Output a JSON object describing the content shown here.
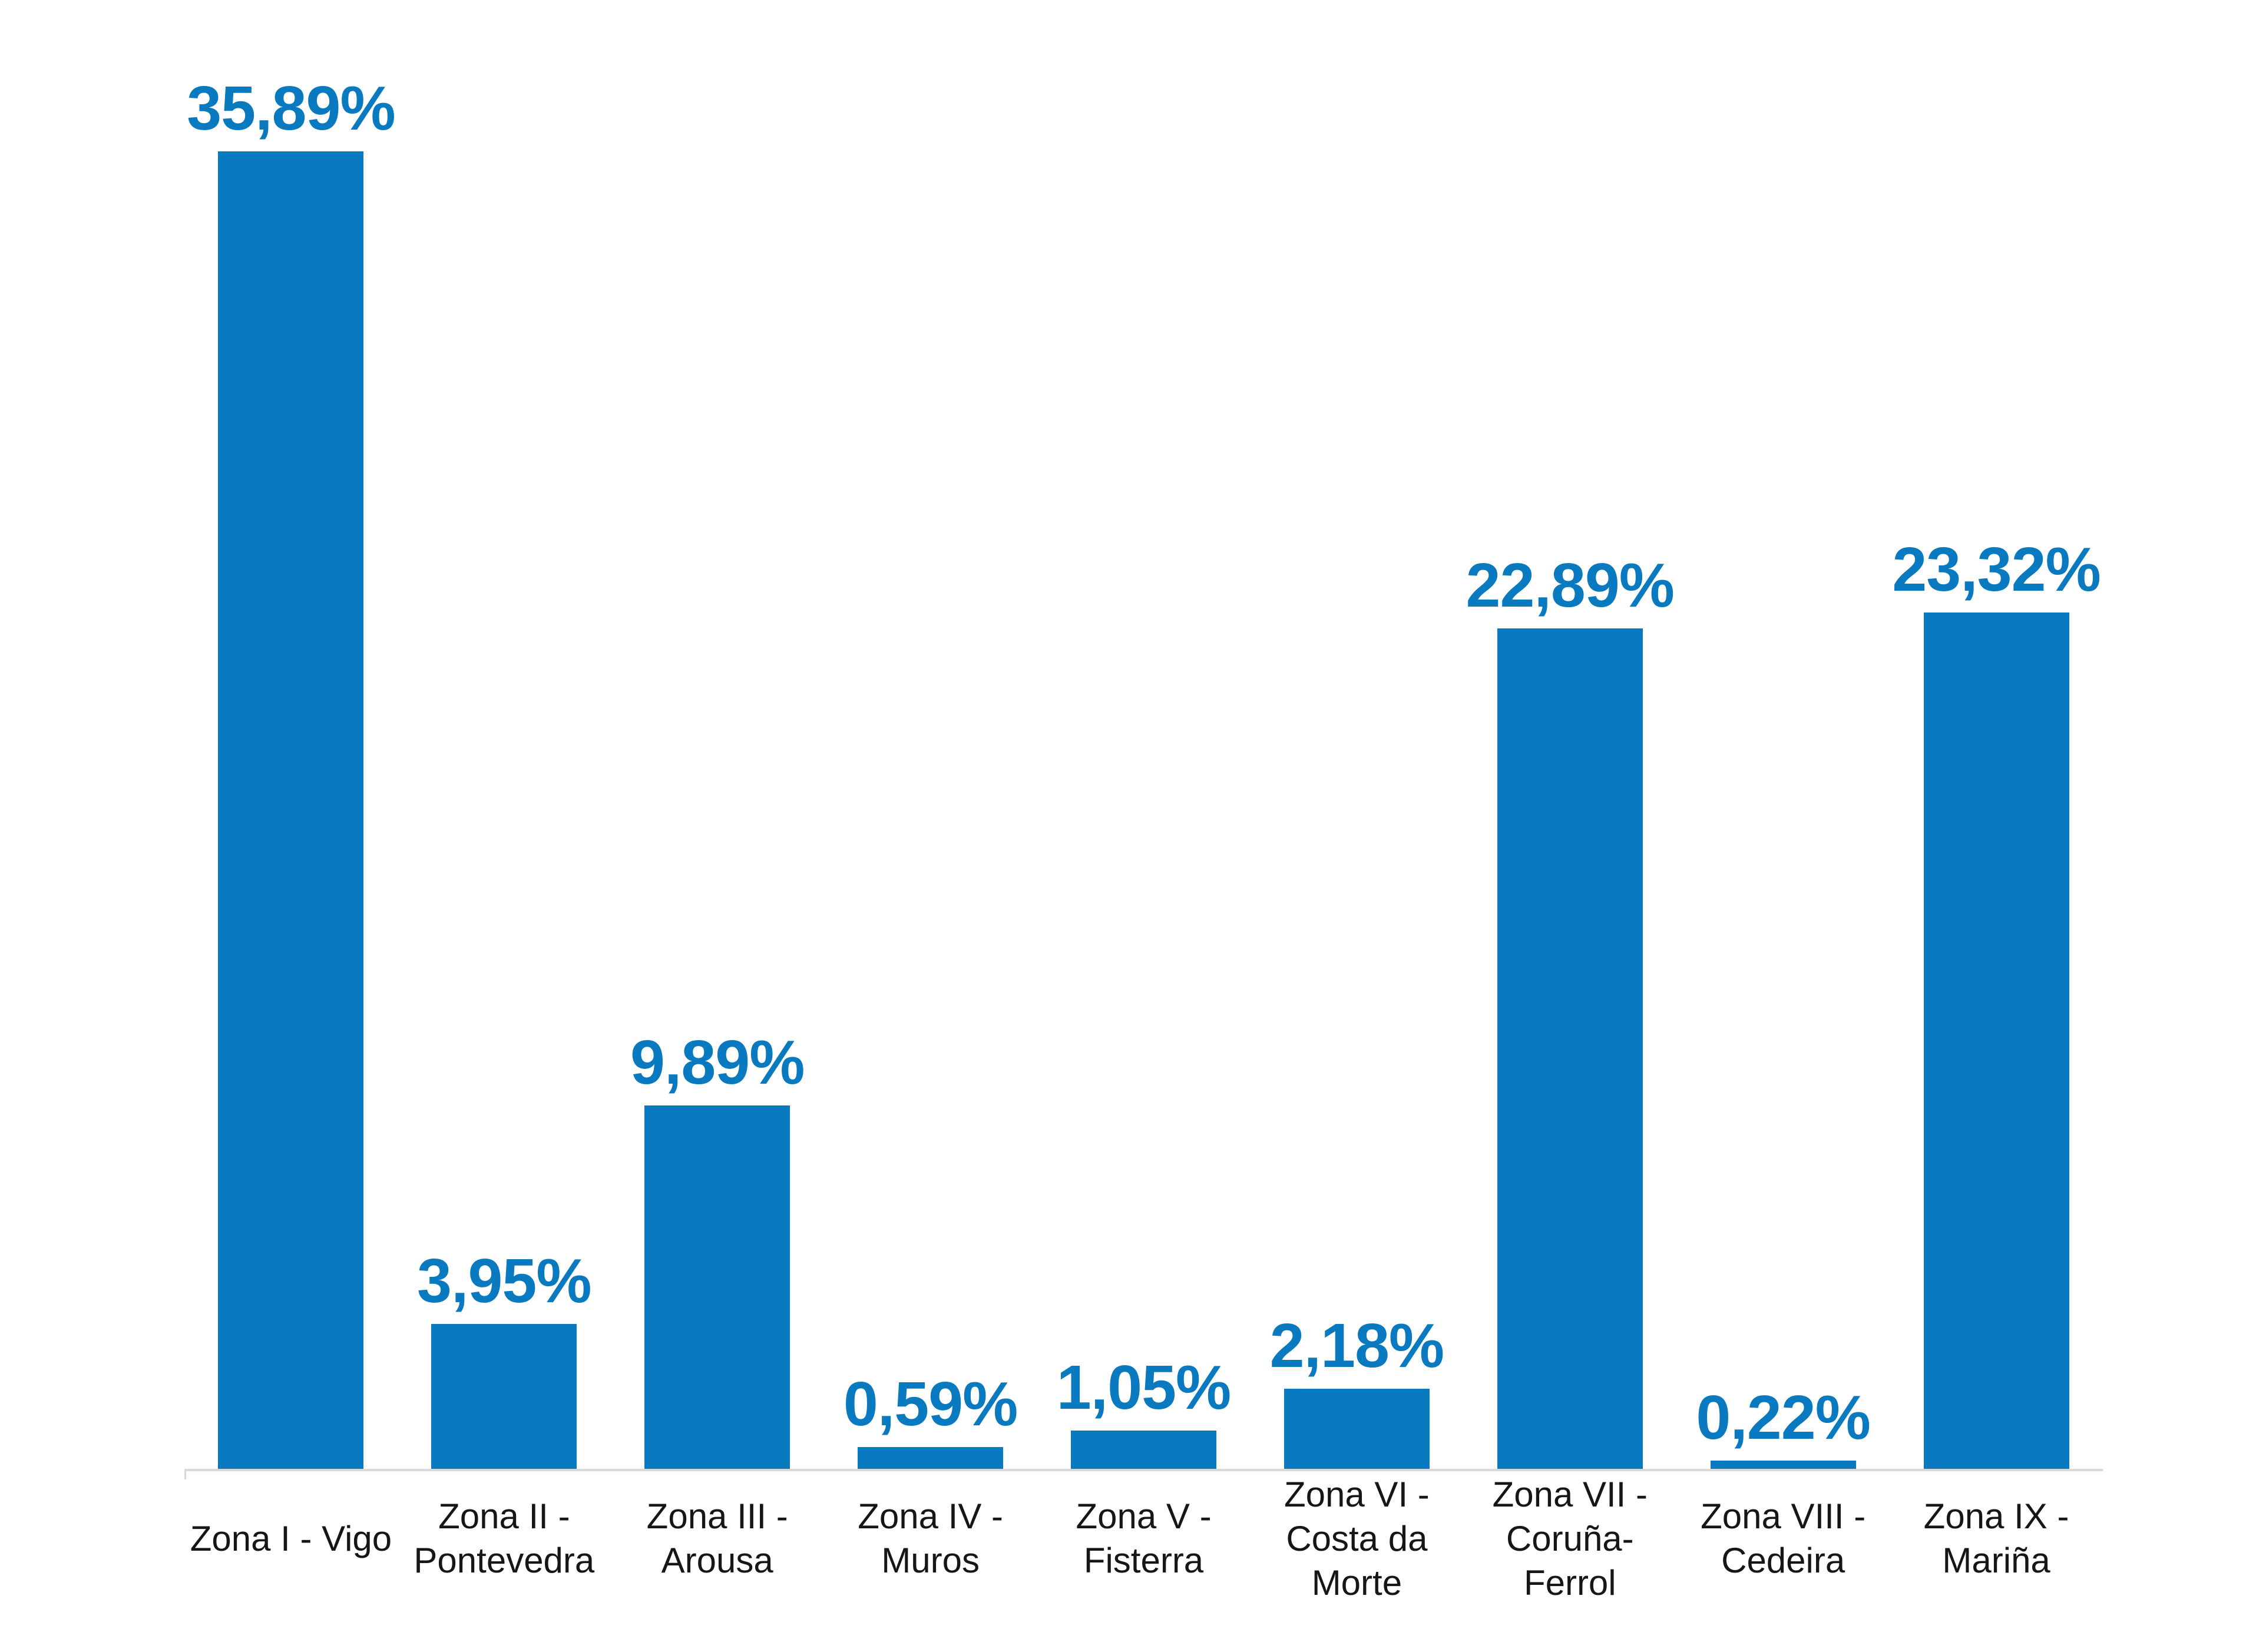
{
  "chart_data": {
    "type": "bar",
    "title": "",
    "xlabel": "",
    "ylabel": "",
    "categories": [
      "Zona I - Vigo",
      "Zona II - Pontevedra",
      "Zona III - Arousa",
      "Zona IV - Muros",
      "Zona V - Fisterra",
      "Zona VI - Costa da Morte",
      "Zona VII - Coruña-Ferrol",
      "Zona VIII - Cedeira",
      "Zona IX - Mariña"
    ],
    "category_lines": [
      "Zona I - Vigo",
      "Zona II -\nPontevedra",
      "Zona III -\nArousa",
      "Zona IV -\nMuros",
      "Zona V -\nFisterra",
      "Zona VI -\nCosta da\nMorte",
      "Zona VII -\nCoruña-\nFerrol",
      "Zona VIII -\nCedeira",
      "Zona IX -\nMariña"
    ],
    "values": [
      35.89,
      3.95,
      9.89,
      0.59,
      1.05,
      2.18,
      22.89,
      0.22,
      23.32
    ],
    "value_labels": [
      "35,89%",
      "3,95%",
      "9,89%",
      "0,59%",
      "1,05%",
      "2,18%",
      "22,89%",
      "0,22%",
      "23,32%"
    ],
    "ylim": [
      0,
      40
    ],
    "grid": false,
    "legend": "none",
    "bar_color": "#0A7AC0",
    "value_label_color": "#0A7AC0",
    "axis_line_color": "#D9D9D9",
    "category_label_color": "#161616"
  }
}
